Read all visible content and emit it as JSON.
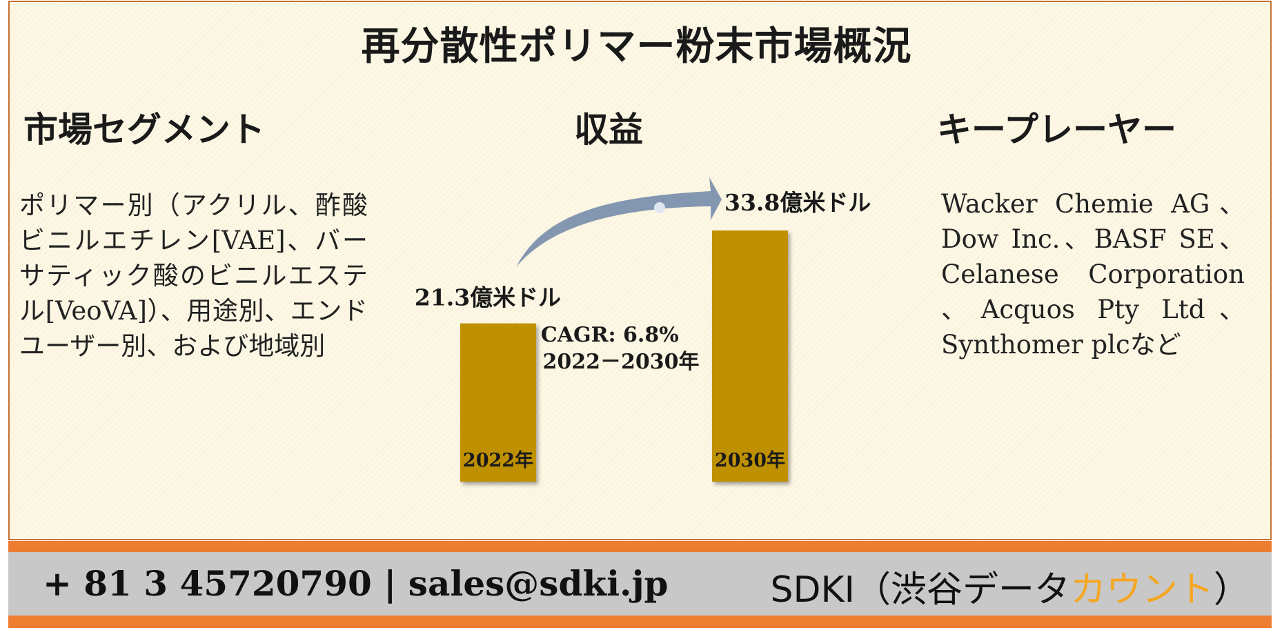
{
  "title": "再分散性ポリマー粉末市場概況",
  "segment": {
    "heading": "市場セグメント",
    "text": "ポリマー別（アクリル、酢酸ビニルエチレン[VAE]、バーサティック酸のビニルエステル[VeoVA]）、用途別、エンドユーザー別、および地域別"
  },
  "revenue": {
    "heading": "収益",
    "cagr_line1": "CAGR: 6.8%",
    "cagr_line2": "2022－2030年"
  },
  "players": {
    "heading": "キープレーヤー",
    "text": "Wacker Chemie AG、Dow Inc.、BASF SE、Celanese Corporation 、Acquos Pty Ltd、Synthomer plcなど"
  },
  "chart_data": {
    "type": "bar",
    "categories": [
      "2022年",
      "2030年"
    ],
    "values": [
      21.3,
      33.8
    ],
    "value_labels": [
      "21.3億米ドル",
      "33.8億米ドル"
    ],
    "unit": "億米ドル",
    "title": "",
    "xlabel": "",
    "ylabel": "",
    "colors": {
      "bar": "#bf9000",
      "arrow": "#8497b0"
    }
  },
  "footer": {
    "contact": "+ 81 3 45720790 | sales@sdki.jp",
    "brand_prefix": "SDKI（渋谷データ",
    "brand_accent": "カウント",
    "brand_suffix": "）"
  }
}
